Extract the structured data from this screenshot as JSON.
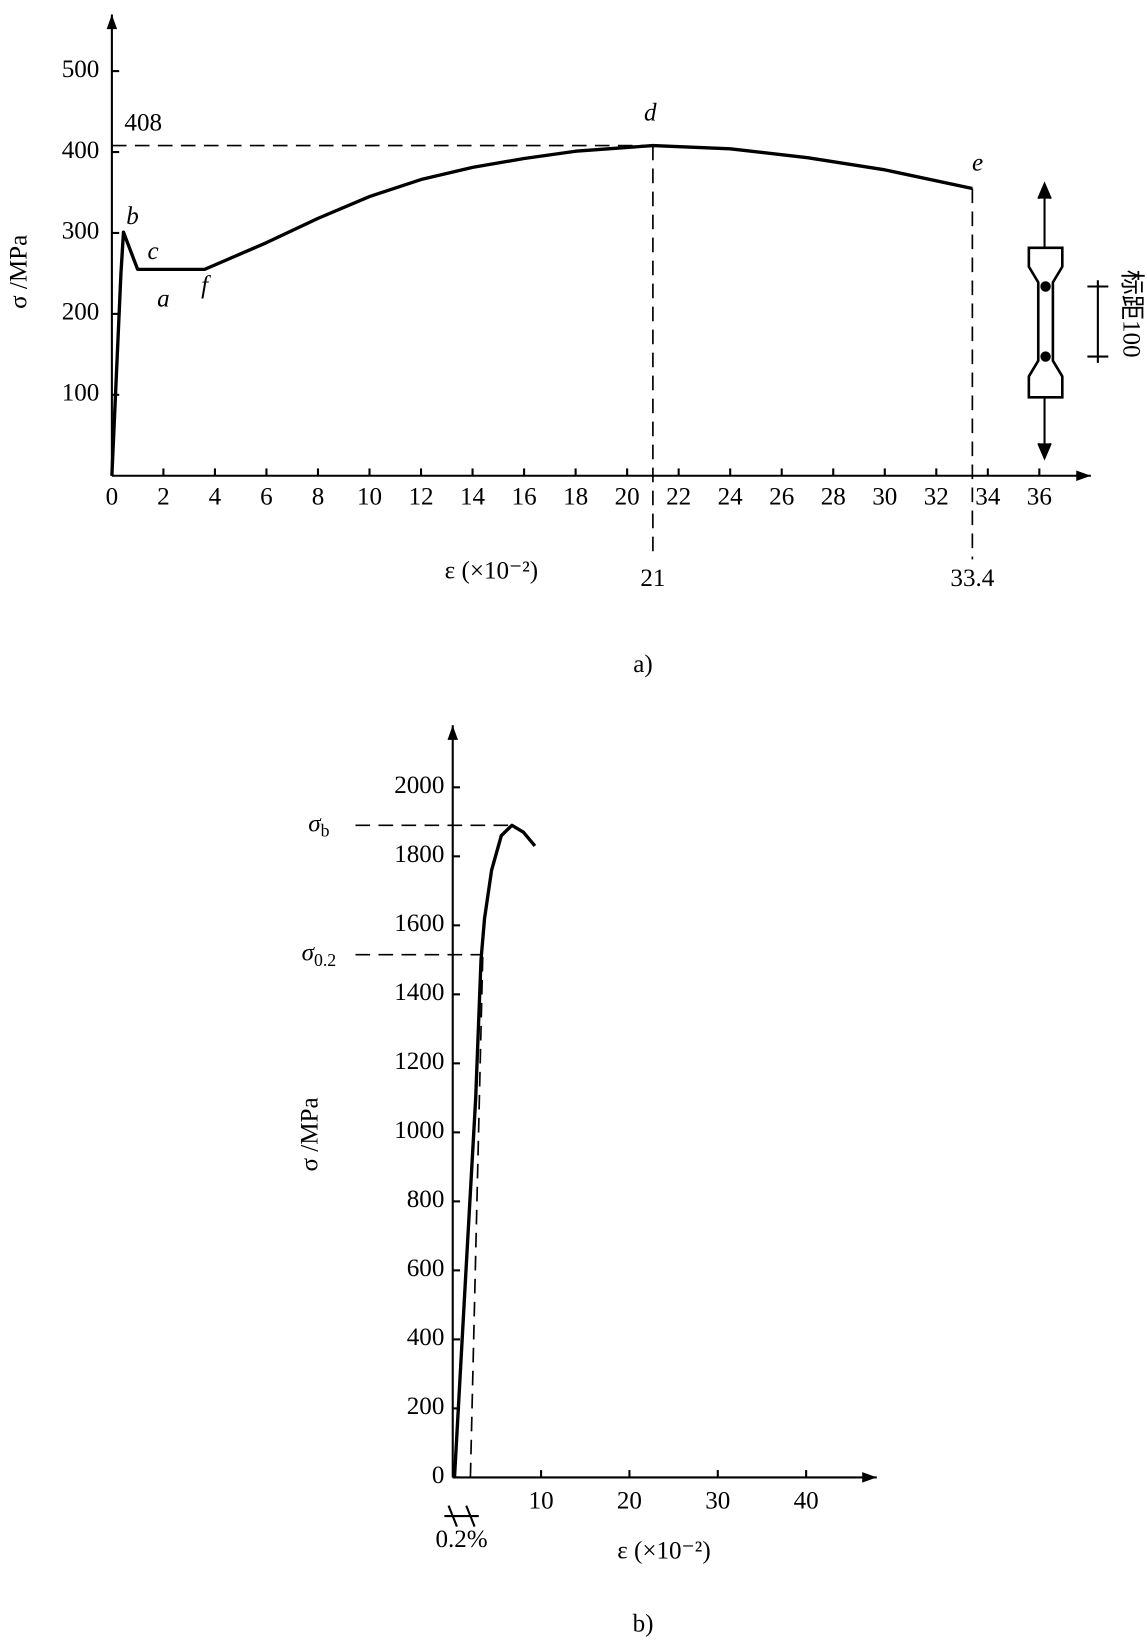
{
  "chart_data": [
    {
      "type": "line",
      "ylabel": "σ /MPa",
      "xlabel": "ε (×10⁻²)",
      "caption": "a)",
      "xlim": [
        0,
        38
      ],
      "ylim": [
        0,
        570
      ],
      "xticks": [
        0,
        2,
        4,
        6,
        8,
        10,
        12,
        14,
        16,
        18,
        20,
        22,
        24,
        26,
        28,
        30,
        32,
        34,
        36
      ],
      "yticks": [
        100,
        200,
        300,
        400,
        500
      ],
      "series": [
        {
          "color": "#000000",
          "x": [
            0,
            0.35,
            0.45,
            1.0,
            3.6,
            6,
            8,
            10,
            12,
            14,
            16,
            18,
            21,
            24,
            27,
            30,
            33.4
          ],
          "values": [
            0,
            249,
            301,
            255,
            255,
            288,
            318,
            345,
            366,
            381,
            392,
            401,
            408,
            404,
            393,
            378,
            355
          ]
        }
      ],
      "point_labels": [
        {
          "text": "b",
          "x": 0.8,
          "y": 318
        },
        {
          "text": "c",
          "x": 1.6,
          "y": 275
        },
        {
          "text": "a",
          "x": 2.0,
          "y": 216
        },
        {
          "text": "f",
          "x": 3.6,
          "y": 233
        },
        {
          "text": "d",
          "x": 20.9,
          "y": 446
        },
        {
          "text": "e",
          "x": 33.6,
          "y": 384
        }
      ],
      "hlines": [
        408
      ],
      "vlines": [
        21,
        33.4
      ],
      "gauge_label": "标距100"
    },
    {
      "type": "line",
      "ylabel": "σ /MPa",
      "xlabel": "ε (×10⁻²)",
      "caption": "b)",
      "xlim": [
        0,
        48
      ],
      "ylim": [
        0,
        2180
      ],
      "xticks": [
        10,
        20,
        30,
        40
      ],
      "yticks": [
        0,
        200,
        400,
        600,
        800,
        1000,
        1200,
        1400,
        1600,
        1800,
        2000
      ],
      "series": [
        {
          "color": "#000000",
          "x": [
            0.2,
            1.5,
            2.6,
            3.2,
            3.6,
            4.4,
            5.5,
            6.7,
            8,
            9.3
          ],
          "values": [
            0,
            600,
            1100,
            1500,
            1620,
            1760,
            1860,
            1890,
            1870,
            1830
          ]
        }
      ],
      "hlines": [
        {
          "value": 1890,
          "symbol": "σ",
          "sub": "b"
        },
        {
          "value": 1515,
          "symbol": "σ",
          "sub": "0.2"
        }
      ],
      "offset_line": {
        "x": [
          2,
          3.4
        ],
        "values": [
          0,
          1515
        ]
      },
      "offset_label": "0.2%"
    }
  ]
}
